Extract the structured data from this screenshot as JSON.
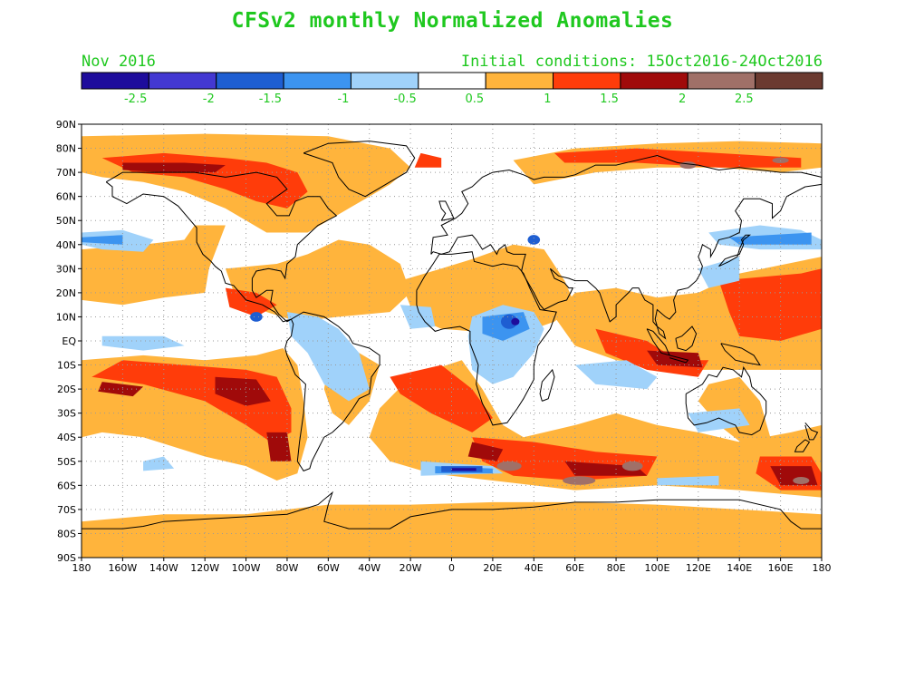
{
  "header": {
    "title": "CFSv2 monthly Normalized Anomalies",
    "month": "Nov 2016",
    "initial_conditions": "Initial conditions: 15Oct2016-24Oct2016"
  },
  "colorbar": {
    "colors": [
      "#1e0c9c",
      "#4338d2",
      "#1e5ed2",
      "#3c94f0",
      "#a0d2fa",
      "#ffffff",
      "#ffffff",
      "#ffb43c",
      "#ff3c0a",
      "#a00a0a",
      "#a07068",
      "#6b3a30"
    ],
    "labels": [
      "-2.5",
      "-2",
      "-1.5",
      "-1",
      "-0.5",
      "0.5",
      "1",
      "1.5",
      "2",
      "2.5"
    ]
  },
  "map": {
    "lat_labels": [
      "90N",
      "80N",
      "70N",
      "60N",
      "50N",
      "40N",
      "30N",
      "20N",
      "10N",
      "EQ",
      "10S",
      "20S",
      "30S",
      "40S",
      "50S",
      "60S",
      "70S",
      "80S",
      "90S"
    ],
    "lon_labels": [
      "180",
      "160W",
      "140W",
      "120W",
      "100W",
      "80W",
      "60W",
      "40W",
      "20W",
      "0",
      "20E",
      "40E",
      "60E",
      "80E",
      "100E",
      "120E",
      "140E",
      "160E",
      "180"
    ]
  }
}
